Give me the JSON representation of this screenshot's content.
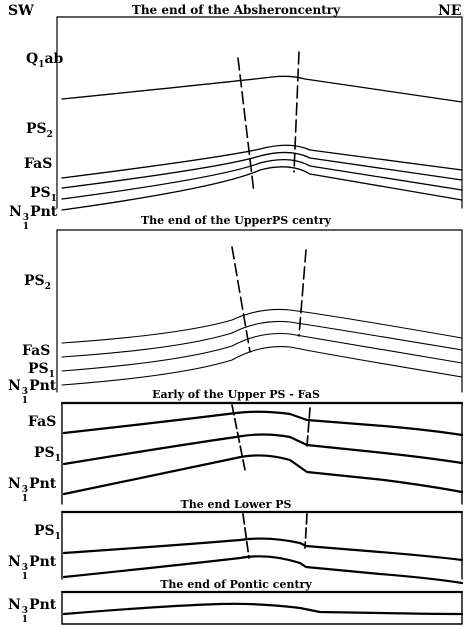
{
  "orientation": {
    "left": "SW",
    "right": "NE"
  },
  "panels": [
    {
      "title": "The end of the Absheroncentry",
      "labels": {
        "qab_main": "Q",
        "qab_sub": "1",
        "qab_tail": "ab",
        "ps2_main": "PS",
        "ps2_sub": "2",
        "fas": "FaS",
        "ps1_main": "PS",
        "ps1_sub": "1",
        "pnt_main": "N",
        "pnt_sup": "3",
        "pnt_sub": "1",
        "pnt_tail": "Pnt"
      }
    },
    {
      "title": "The end of the UpperPS centry",
      "labels": {
        "ps2_main": "PS",
        "ps2_sub": "2",
        "fas": "FaS",
        "ps1_main": "PS",
        "ps1_sub": "1",
        "pnt_main": "N",
        "pnt_sup": "3",
        "pnt_sub": "1",
        "pnt_tail": "Pnt"
      }
    },
    {
      "title": "Early of the Upper PS - FaS",
      "labels": {
        "fas": "FaS",
        "ps1_main": "PS",
        "ps1_sub": "1",
        "pnt_main": "N",
        "pnt_sup": "3",
        "pnt_sub": "1",
        "pnt_tail": "Pnt"
      }
    },
    {
      "title": "The end Lower PS",
      "labels": {
        "ps1_main": "PS",
        "ps1_sub": "1",
        "pnt_main": "N",
        "pnt_sup": "3",
        "pnt_sub": "1",
        "pnt_tail": "Pnt"
      }
    },
    {
      "title": "The end of Pontic centry",
      "labels": {
        "pnt_main": "N",
        "pnt_sup": "3",
        "pnt_sub": "1",
        "pnt_tail": "Pnt"
      }
    }
  ]
}
